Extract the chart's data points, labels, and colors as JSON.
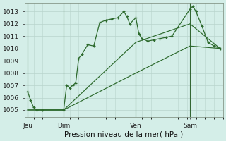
{
  "background_color": "#d4eee8",
  "plot_bg_color": "#d4eee8",
  "grid_color": "#b8d4cc",
  "line_color": "#2d6a2d",
  "title": "Pression niveau de la mer( hPa )",
  "ylabel_values": [
    1005,
    1006,
    1007,
    1008,
    1009,
    1010,
    1011,
    1012,
    1013
  ],
  "x_tick_labels": [
    "Jeu",
    "Dim",
    "Ven",
    "Sam"
  ],
  "x_tick_positions": [
    0,
    12,
    36,
    54
  ],
  "xlim": [
    -1,
    65
  ],
  "ylim": [
    1004.4,
    1013.7
  ],
  "series1_x": [
    0,
    1,
    2,
    3,
    5,
    12,
    13,
    14,
    15,
    16,
    17,
    18,
    20,
    22,
    24,
    26,
    28,
    30,
    32,
    33,
    34,
    36,
    37,
    38,
    40,
    42,
    44,
    46,
    48,
    54,
    55,
    56,
    58,
    60,
    62,
    64
  ],
  "series1_y": [
    1006.5,
    1005.8,
    1005.2,
    1005.0,
    1005.0,
    1005.0,
    1007.0,
    1006.8,
    1007.0,
    1007.2,
    1009.2,
    1009.5,
    1010.3,
    1010.2,
    1012.1,
    1012.3,
    1012.4,
    1012.5,
    1013.0,
    1012.6,
    1012.0,
    1012.5,
    1011.2,
    1010.8,
    1010.6,
    1010.7,
    1010.8,
    1010.9,
    1011.0,
    1013.2,
    1013.4,
    1013.0,
    1011.8,
    1010.5,
    1010.2,
    1010.0
  ],
  "series2_x": [
    0,
    12,
    36,
    54,
    64
  ],
  "series2_y": [
    1005.0,
    1005.0,
    1008.0,
    1010.2,
    1010.0
  ],
  "series3_x": [
    0,
    12,
    36,
    54,
    64
  ],
  "series3_y": [
    1005.0,
    1005.0,
    1010.5,
    1012.0,
    1010.0
  ],
  "vline_positions": [
    0,
    12,
    36,
    54
  ],
  "vline_color": "#336633",
  "title_fontsize": 7.5,
  "tick_fontsize": 6.5,
  "ytick_fontsize": 6.5
}
